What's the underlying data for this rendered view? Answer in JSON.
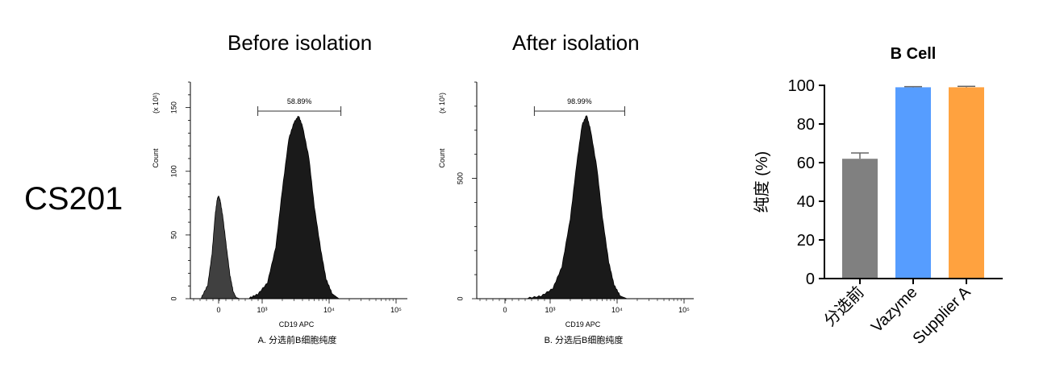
{
  "side_label": "CS201",
  "panel_titles": {
    "before": "Before isolation",
    "after": "After isolation"
  },
  "colors": {
    "before_neg": "#404040",
    "before_pos": "#1a1a1a",
    "after_pos": "#1a1a1a",
    "bar_gray": "#808080",
    "bar_blue": "#569dff",
    "bar_orange": "#ffa23f"
  },
  "chart_data": [
    {
      "type": "area",
      "panel": "A",
      "caption": "A. 分选前B细胞纯度",
      "xlabel": "CD19 APC",
      "ylabel": "Count",
      "y_multiplier": "(x 10¹)",
      "x_scale": "biexponential",
      "x_ticks": [
        "0",
        "10³",
        "10⁴",
        "10⁵"
      ],
      "y_ticks": [
        "0",
        "50",
        "100",
        "150"
      ],
      "ylim": [
        0,
        170
      ],
      "gate": {
        "label": "58.89%",
        "from": 900,
        "to": 15000
      },
      "series": [
        {
          "x": [
            -400,
            -250,
            -150,
            -80,
            -30,
            0,
            40,
            100,
            180,
            260,
            330,
            400,
            480
          ],
          "values": [
            0,
            10,
            35,
            65,
            78,
            80,
            76,
            63,
            40,
            18,
            6,
            1,
            0
          ]
        },
        {
          "x": [
            700,
            900,
            1200,
            1600,
            2000,
            2500,
            3000,
            3500,
            4000,
            5000,
            6000,
            7500,
            9000,
            11000,
            14000
          ],
          "values": [
            0,
            3,
            12,
            40,
            85,
            125,
            138,
            143,
            135,
            110,
            72,
            38,
            15,
            4,
            0
          ]
        }
      ]
    },
    {
      "type": "area",
      "panel": "B",
      "caption": "B. 分选后B细胞纯度",
      "xlabel": "CD19 APC",
      "ylabel": "Count",
      "y_multiplier": "(x 10¹)",
      "x_scale": "biexponential",
      "x_ticks": [
        "0",
        "10³",
        "10⁴",
        "10⁵"
      ],
      "y_ticks": [
        "0",
        "500"
      ],
      "ylim": [
        0,
        900
      ],
      "gate": {
        "label": "98.99%",
        "from": 650,
        "to": 13000
      },
      "series": [
        {
          "x": [
            500,
            800,
            1100,
            1500,
            2000,
            2500,
            3000,
            3500,
            4000,
            5000,
            6000,
            7500,
            9000,
            11000,
            14000
          ],
          "values": [
            0,
            8,
            40,
            130,
            330,
            560,
            720,
            760,
            700,
            540,
            340,
            150,
            55,
            12,
            0
          ]
        }
      ]
    },
    {
      "type": "bar",
      "title": "B Cell",
      "ylabel": "纯度 (%)",
      "categories": [
        "分选前",
        "Vazyme",
        "Supplier A"
      ],
      "values": [
        62,
        99,
        99
      ],
      "errors": [
        3,
        0.3,
        0.5
      ],
      "ylim": [
        0,
        100
      ],
      "y_ticks": [
        "0",
        "20",
        "40",
        "60",
        "80",
        "100"
      ]
    }
  ]
}
